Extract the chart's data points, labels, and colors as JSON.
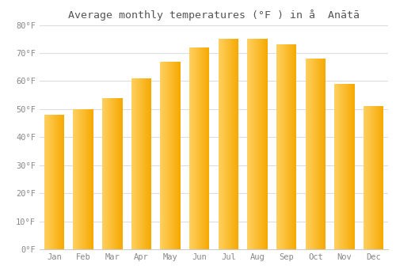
{
  "title": "Average monthly temperatures (°F ) in å  Anātā",
  "months": [
    "Jan",
    "Feb",
    "Mar",
    "Apr",
    "May",
    "Jun",
    "Jul",
    "Aug",
    "Sep",
    "Oct",
    "Nov",
    "Dec"
  ],
  "values": [
    48,
    50,
    54,
    61,
    67,
    72,
    75,
    75,
    73,
    68,
    59,
    51
  ],
  "ylim": [
    0,
    80
  ],
  "yticks": [
    0,
    10,
    20,
    30,
    40,
    50,
    60,
    70,
    80
  ],
  "ytick_labels": [
    "0°F",
    "10°F",
    "20°F",
    "30°F",
    "40°F",
    "50°F",
    "60°F",
    "70°F",
    "80°F"
  ],
  "bar_color_left": "#FFD060",
  "bar_color_right": "#F5A800",
  "background_color": "#ffffff",
  "grid_color": "#dddddd",
  "title_fontsize": 9.5,
  "tick_fontsize": 7.5,
  "bar_width": 0.7
}
